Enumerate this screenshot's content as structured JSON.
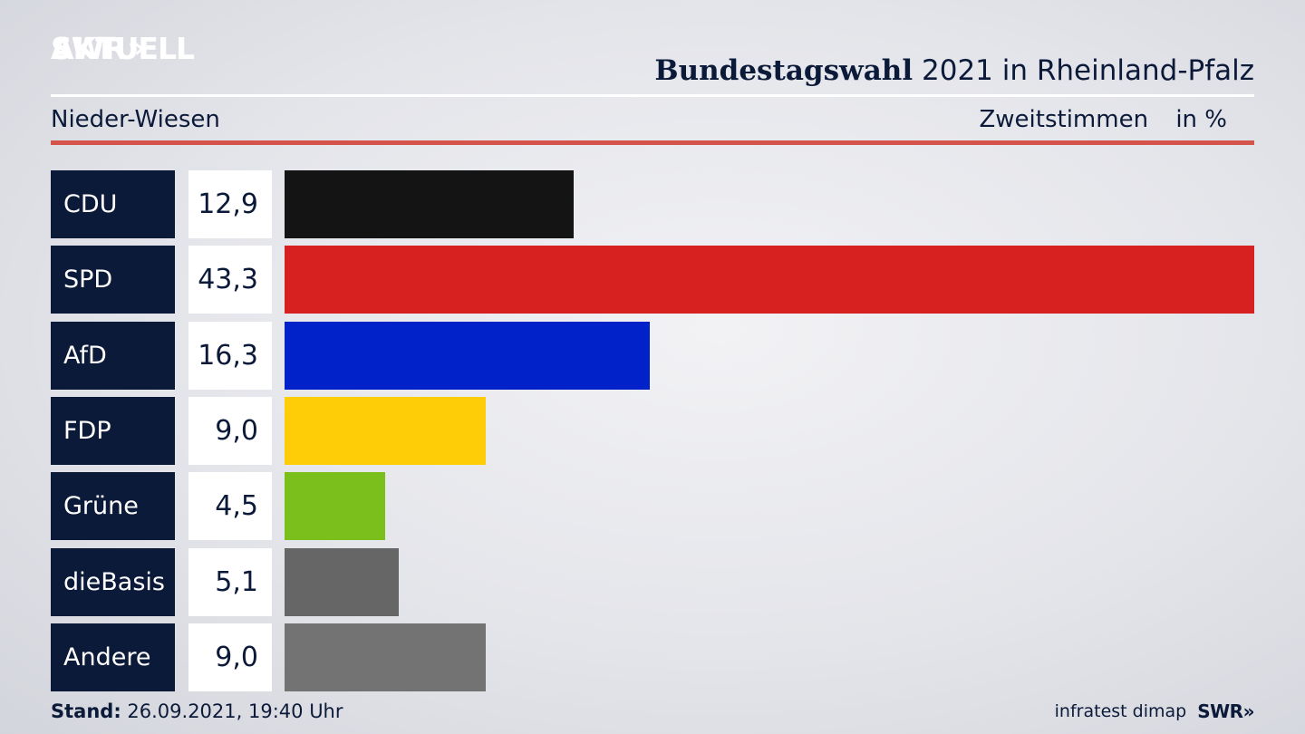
{
  "header": {
    "logo_line1": "SWR",
    "logo_chevrons": "»",
    "logo_line2": "AKTUELL",
    "title_bold": "Bundestagswahl",
    "title_rest": "2021 in Rheinland-Pfalz",
    "region": "Nieder-Wiesen",
    "measure": "Zweitstimmen",
    "unit": "in %"
  },
  "chart_data": {
    "type": "bar",
    "categories": [
      "CDU",
      "SPD",
      "AfD",
      "FDP",
      "Grüne",
      "dieBasis",
      "Andere"
    ],
    "values": [
      12.9,
      43.3,
      16.3,
      9.0,
      4.5,
      5.1,
      9.0
    ],
    "value_labels": [
      "12,9",
      "43,3",
      "16,3",
      "9,0",
      "4,5",
      "5,1",
      "9,0"
    ],
    "colors": [
      "#141414",
      "#d72020",
      "#0022c8",
      "#ffcc08",
      "#7abf1b",
      "#666666",
      "#737373"
    ],
    "orientation": "horizontal",
    "unit": "%",
    "grid": false
  },
  "footer": {
    "stand_label": "Stand:",
    "stand_value": "26.09.2021, 19:40 Uhr",
    "source": "infratest dimap",
    "brand": "SWR»"
  }
}
